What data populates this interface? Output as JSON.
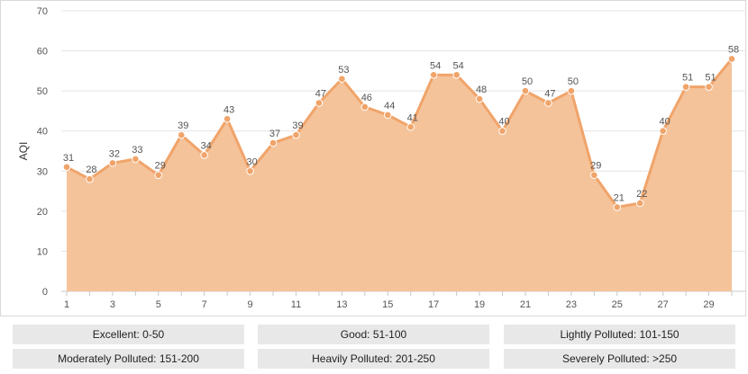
{
  "chart_data": {
    "type": "area",
    "x": [
      1,
      2,
      3,
      4,
      5,
      6,
      7,
      8,
      9,
      10,
      11,
      12,
      13,
      14,
      15,
      16,
      17,
      18,
      19,
      20,
      21,
      22,
      23,
      24,
      25,
      26,
      27,
      28,
      29,
      30
    ],
    "values": [
      31,
      28,
      32,
      33,
      29,
      39,
      34,
      43,
      30,
      37,
      39,
      47,
      53,
      46,
      44,
      41,
      54,
      54,
      48,
      40,
      50,
      47,
      50,
      29,
      21,
      22,
      40,
      51,
      51,
      58
    ],
    "xticks": [
      "1",
      "3",
      "5",
      "7",
      "9",
      "11",
      "13",
      "15",
      "17",
      "19",
      "21",
      "23",
      "25",
      "27",
      "29"
    ],
    "yticks": [
      "0",
      "10",
      "20",
      "30",
      "40",
      "50",
      "60",
      "70"
    ],
    "ylabel": "AQI",
    "ylim": [
      0,
      70
    ],
    "xlim": [
      1,
      30
    ],
    "grid": "horizontal",
    "colors": {
      "fill": "#f5c39a",
      "line": "#f0a46a",
      "marker": "#f0a46a"
    }
  },
  "legend": [
    [
      "Excellent: 0-50",
      "Good: 51-100",
      "Lightly Polluted: 101-150"
    ],
    [
      "Moderately Polluted: 151-200",
      "Heavily Polluted: 201-250",
      "Severely Polluted: >250"
    ]
  ]
}
